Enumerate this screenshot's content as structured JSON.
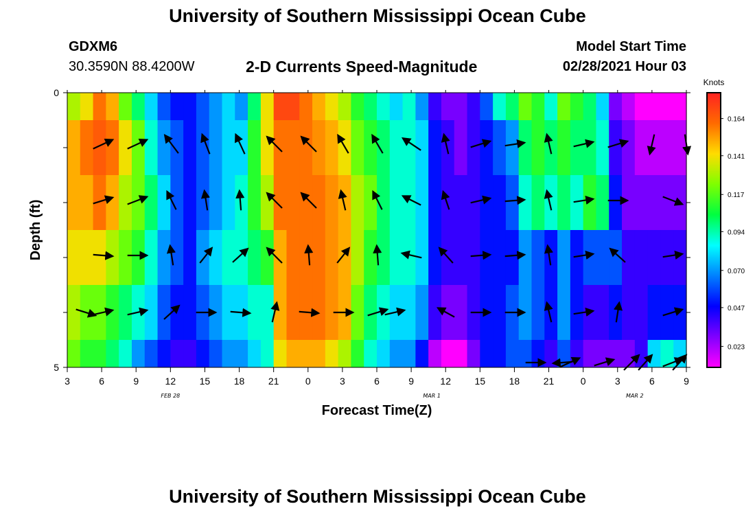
{
  "header": {
    "title": "University of Southern Mississippi Ocean Cube",
    "station_id": "GDXM6",
    "station_coords": "30.3590N 88.4200W",
    "plot_title": "2-D Currents Speed-Magnitude",
    "start_label": "Model Start Time",
    "start_value": "02/28/2021 Hour 03"
  },
  "footer": {
    "title": "University of Southern Mississippi Ocean Cube"
  },
  "chart_data": {
    "type": "heatmap",
    "title": "2-D Currents Speed-Magnitude",
    "xlabel": "Forecast Time(Z)",
    "ylabel": "Depth (ft)",
    "ylim": [
      0,
      5
    ],
    "y_ticks": [
      "0",
      "5"
    ],
    "x_ticks": [
      "3",
      "6",
      "9",
      "12",
      "15",
      "18",
      "21",
      "0",
      "3",
      "6",
      "9",
      "12",
      "15",
      "18",
      "21",
      "0",
      "3",
      "6",
      "9"
    ],
    "date_labels": [
      {
        "text": "FEB 28",
        "hour_index": 3
      },
      {
        "text": "MAR 1",
        "hour_index": 10.6
      },
      {
        "text": "MAR 2",
        "hour_index": 16.5
      }
    ],
    "depth_layers": 5,
    "colorbar": {
      "unit": "Knots",
      "ticks": [
        "0.164",
        "0.141",
        "0.117",
        "0.094",
        "0.070",
        "0.047",
        "0.023"
      ],
      "stops": [
        "#ff2222",
        "#ff6a00",
        "#ffdc00",
        "#7fff00",
        "#00ff40",
        "#00ffff",
        "#0080ff",
        "#0000ff",
        "#8000ff",
        "#ff00ff"
      ]
    },
    "speed_columns": [
      [
        0.13,
        0.15,
        0.15,
        0.14,
        0.13,
        0.12
      ],
      [
        0.14,
        0.16,
        0.15,
        0.14,
        0.12,
        0.11
      ],
      [
        0.16,
        0.165,
        0.16,
        0.14,
        0.12,
        0.11
      ],
      [
        0.15,
        0.16,
        0.15,
        0.13,
        0.11,
        0.1
      ],
      [
        0.12,
        0.14,
        0.13,
        0.12,
        0.1,
        0.09
      ],
      [
        0.1,
        0.12,
        0.12,
        0.11,
        0.09,
        0.07
      ],
      [
        0.08,
        0.09,
        0.1,
        0.09,
        0.08,
        0.06
      ],
      [
        0.06,
        0.07,
        0.08,
        0.07,
        0.06,
        0.05
      ],
      [
        0.05,
        0.06,
        0.06,
        0.06,
        0.05,
        0.04
      ],
      [
        0.05,
        0.05,
        0.05,
        0.05,
        0.05,
        0.04
      ],
      [
        0.06,
        0.06,
        0.06,
        0.07,
        0.06,
        0.05
      ],
      [
        0.07,
        0.07,
        0.07,
        0.08,
        0.07,
        0.06
      ],
      [
        0.08,
        0.08,
        0.08,
        0.09,
        0.08,
        0.07
      ],
      [
        0.07,
        0.08,
        0.09,
        0.09,
        0.08,
        0.07
      ],
      [
        0.1,
        0.11,
        0.11,
        0.1,
        0.09,
        0.08
      ],
      [
        0.14,
        0.14,
        0.13,
        0.11,
        0.09,
        0.09
      ],
      [
        0.17,
        0.16,
        0.16,
        0.15,
        0.15,
        0.14
      ],
      [
        0.17,
        0.16,
        0.16,
        0.16,
        0.16,
        0.15
      ],
      [
        0.16,
        0.16,
        0.16,
        0.16,
        0.16,
        0.15
      ],
      [
        0.15,
        0.155,
        0.16,
        0.16,
        0.16,
        0.15
      ],
      [
        0.14,
        0.15,
        0.155,
        0.155,
        0.155,
        0.14
      ],
      [
        0.13,
        0.14,
        0.15,
        0.15,
        0.15,
        0.13
      ],
      [
        0.11,
        0.12,
        0.13,
        0.13,
        0.12,
        0.11
      ],
      [
        0.1,
        0.11,
        0.12,
        0.11,
        0.1,
        0.09
      ],
      [
        0.09,
        0.1,
        0.1,
        0.1,
        0.09,
        0.08
      ],
      [
        0.08,
        0.09,
        0.09,
        0.09,
        0.08,
        0.07
      ],
      [
        0.09,
        0.09,
        0.09,
        0.09,
        0.08,
        0.07
      ],
      [
        0.07,
        0.08,
        0.08,
        0.08,
        0.07,
        0.05
      ],
      [
        0.04,
        0.05,
        0.05,
        0.05,
        0.04,
        0.02
      ],
      [
        0.03,
        0.04,
        0.04,
        0.04,
        0.03,
        0.01
      ],
      [
        0.03,
        0.03,
        0.04,
        0.04,
        0.03,
        0.01
      ],
      [
        0.04,
        0.04,
        0.04,
        0.04,
        0.04,
        0.03
      ],
      [
        0.06,
        0.05,
        0.05,
        0.05,
        0.05,
        0.05
      ],
      [
        0.09,
        0.06,
        0.05,
        0.05,
        0.05,
        0.05
      ],
      [
        0.1,
        0.07,
        0.06,
        0.05,
        0.06,
        0.06
      ],
      [
        0.12,
        0.1,
        0.09,
        0.07,
        0.07,
        0.06
      ],
      [
        0.11,
        0.11,
        0.1,
        0.06,
        0.06,
        0.05
      ],
      [
        0.09,
        0.1,
        0.09,
        0.05,
        0.05,
        0.04
      ],
      [
        0.12,
        0.11,
        0.1,
        0.07,
        0.07,
        0.06
      ],
      [
        0.11,
        0.1,
        0.09,
        0.05,
        0.05,
        0.04
      ],
      [
        0.1,
        0.1,
        0.11,
        0.06,
        0.04,
        0.03
      ],
      [
        0.08,
        0.09,
        0.1,
        0.06,
        0.04,
        0.03
      ],
      [
        0.03,
        0.04,
        0.05,
        0.06,
        0.05,
        0.03
      ],
      [
        0.02,
        0.03,
        0.03,
        0.04,
        0.04,
        0.03
      ],
      [
        0.01,
        0.02,
        0.03,
        0.04,
        0.04,
        0.04
      ],
      [
        0.01,
        0.02,
        0.03,
        0.04,
        0.05,
        0.08
      ],
      [
        0.01,
        0.02,
        0.03,
        0.04,
        0.05,
        0.09
      ],
      [
        0.01,
        0.02,
        0.03,
        0.04,
        0.05,
        0.08
      ]
    ],
    "vectors": [
      [
        [
          150,
          1.3,
          -0.6
        ],
        [
          200,
          1.3,
          -0.6
        ],
        [
          250,
          -0.9,
          -1.2
        ],
        [
          300,
          -0.5,
          -1.3
        ],
        [
          350,
          -0.6,
          -1.3
        ],
        [
          400,
          -1.0,
          -1.0
        ],
        [
          450,
          -1.0,
          -1.0
        ],
        [
          500,
          -0.7,
          -1.2
        ],
        [
          550,
          -0.7,
          -1.2
        ],
        [
          600,
          -1.2,
          -0.8
        ],
        [
          650,
          -0.3,
          -1.3
        ],
        [
          700,
          1.3,
          -0.4
        ],
        [
          750,
          1.3,
          -0.2
        ],
        [
          800,
          -0.3,
          -1.3
        ],
        [
          850,
          1.3,
          -0.3
        ],
        [
          900,
          1.3,
          -0.4
        ],
        [
          950,
          -0.3,
          1.3
        ],
        [
          1000,
          0.2,
          1.3
        ]
      ],
      [
        [
          150,
          1.3,
          -0.4
        ],
        [
          200,
          1.3,
          -0.5
        ],
        [
          250,
          -0.6,
          -1.2
        ],
        [
          300,
          -0.2,
          -1.3
        ],
        [
          350,
          -0.1,
          -1.3
        ],
        [
          400,
          -1.0,
          -1.0
        ],
        [
          450,
          -1.0,
          -1.0
        ],
        [
          500,
          -0.3,
          -1.3
        ],
        [
          550,
          -0.6,
          -1.2
        ],
        [
          600,
          -1.2,
          -0.6
        ],
        [
          650,
          -0.4,
          -1.2
        ],
        [
          700,
          1.3,
          -0.3
        ],
        [
          750,
          1.3,
          -0.1
        ],
        [
          800,
          -0.3,
          -1.3
        ],
        [
          850,
          1.3,
          -0.2
        ],
        [
          900,
          1.3,
          0.0
        ],
        [
          980,
          1.3,
          0.5
        ]
      ],
      [
        [
          150,
          1.3,
          0.1
        ],
        [
          200,
          1.3,
          0.0
        ],
        [
          250,
          -0.2,
          -1.3
        ],
        [
          300,
          0.8,
          -1.0
        ],
        [
          350,
          1.0,
          -0.9
        ],
        [
          400,
          -1.0,
          -1.0
        ],
        [
          450,
          -0.1,
          -1.3
        ],
        [
          500,
          0.8,
          -1.0
        ],
        [
          550,
          -0.1,
          -1.3
        ],
        [
          600,
          -1.3,
          -0.3
        ],
        [
          650,
          -0.9,
          -1.0
        ],
        [
          700,
          1.3,
          -0.1
        ],
        [
          750,
          1.3,
          -0.1
        ],
        [
          800,
          -0.2,
          -1.3
        ],
        [
          850,
          1.3,
          -0.2
        ],
        [
          900,
          -1.0,
          -0.9
        ],
        [
          980,
          1.3,
          -0.2
        ]
      ],
      [
        [
          125,
          1.3,
          0.4
        ],
        [
          150,
          1.3,
          -0.3
        ],
        [
          200,
          1.3,
          -0.3
        ],
        [
          250,
          1.0,
          -0.9
        ],
        [
          300,
          1.3,
          0.0
        ],
        [
          350,
          1.3,
          0.1
        ],
        [
          400,
          0.3,
          -1.3
        ],
        [
          450,
          1.3,
          0.1
        ],
        [
          500,
          1.3,
          0.0
        ],
        [
          550,
          1.3,
          -0.4
        ],
        [
          575,
          1.3,
          -0.3
        ],
        [
          650,
          -1.1,
          -0.6
        ],
        [
          700,
          1.3,
          0.0
        ],
        [
          750,
          1.3,
          0.0
        ],
        [
          800,
          -0.3,
          -1.3
        ],
        [
          850,
          1.3,
          -0.2
        ],
        [
          900,
          0.2,
          -1.3
        ],
        [
          980,
          1.3,
          -0.4
        ]
      ],
      [
        [
          780,
          1.3,
          0.0
        ],
        [
          830,
          1.3,
          -0.6
        ],
        [
          920,
          1.0,
          -1.0
        ],
        [
          980,
          1.3,
          -0.5
        ],
        [
          820,
          -1.3,
          0.1
        ],
        [
          880,
          1.3,
          -0.4
        ],
        [
          940,
          0.9,
          -1.0
        ],
        [
          990,
          0.9,
          -1.0
        ]
      ]
    ]
  }
}
